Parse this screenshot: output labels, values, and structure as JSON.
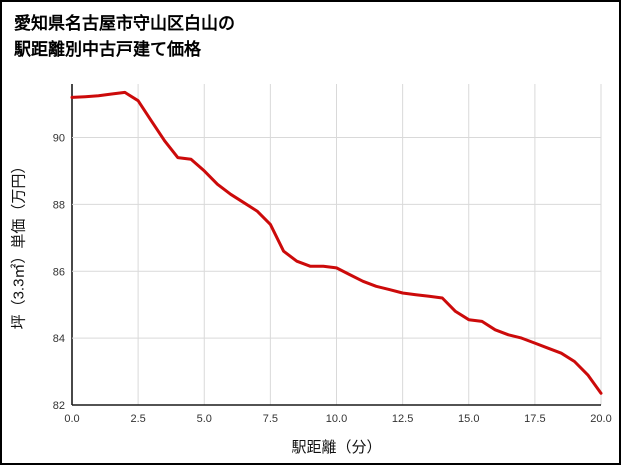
{
  "title": {
    "line1": "愛知県名古屋市守山区白山の",
    "line2": "駅距離別中古戸建て価格"
  },
  "chart_data": {
    "type": "line",
    "title": "愛知県名古屋市守山区白山の駅距離別中古戸建て価格",
    "xlabel": "駅距離（分）",
    "ylabel": "坪（3.3㎡）単価（万円）",
    "xlim": [
      0,
      20
    ],
    "ylim": [
      82,
      91.6
    ],
    "x_ticks": [
      0,
      2.5,
      5,
      7.5,
      10,
      12.5,
      15,
      17.5,
      20
    ],
    "x_tick_labels": [
      "0.0",
      "2.5",
      "5.0",
      "7.5",
      "10.0",
      "12.5",
      "15.0",
      "17.5",
      "20.0"
    ],
    "y_ticks": [
      82,
      84,
      86,
      88,
      90
    ],
    "y_tick_labels": [
      "82",
      "84",
      "86",
      "88",
      "90"
    ],
    "grid": true,
    "legend": "none",
    "line_color": "#cc0a0a",
    "x": [
      0,
      0.5,
      1,
      1.5,
      2,
      2.5,
      3,
      3.5,
      4,
      4.5,
      5,
      5.5,
      6,
      6.5,
      7,
      7.5,
      8,
      8.5,
      9,
      9.5,
      10,
      10.5,
      11,
      11.5,
      12,
      12.5,
      13,
      13.5,
      14,
      14.5,
      15,
      15.5,
      16,
      16.5,
      17,
      17.5,
      18,
      18.5,
      19,
      19.5,
      20
    ],
    "values": [
      91.2,
      91.22,
      91.25,
      91.3,
      91.35,
      91.1,
      90.5,
      89.9,
      89.4,
      89.35,
      89.0,
      88.6,
      88.3,
      88.05,
      87.8,
      87.4,
      86.6,
      86.3,
      86.15,
      86.15,
      86.1,
      85.9,
      85.7,
      85.55,
      85.45,
      85.35,
      85.3,
      85.25,
      85.2,
      84.8,
      84.55,
      84.5,
      84.25,
      84.1,
      84.0,
      83.85,
      83.7,
      83.55,
      83.3,
      82.9,
      82.35
    ]
  }
}
